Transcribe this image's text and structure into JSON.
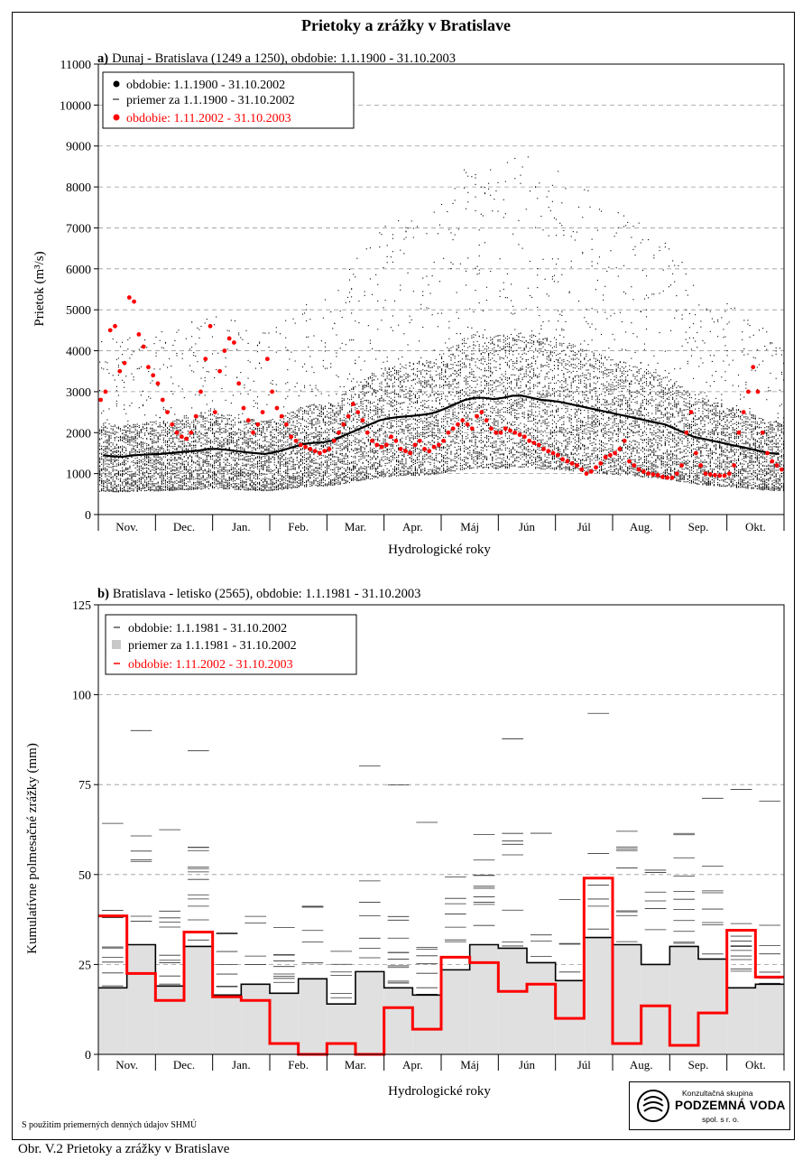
{
  "title": "Prietoky a zrážky v Bratislave",
  "caption": "Obr. V.2 Prietoky a zrážky v Bratislave",
  "source_note": "S použitím priemerných denných údajov SHMÚ",
  "logo": {
    "line1": "Konzultačná skupina",
    "line2": "PODZEMNÁ VODA",
    "line3": "spol. s r. o."
  },
  "colors": {
    "historical": "#000000",
    "current": "#ff0000",
    "mean_fill": "#e0e0e0",
    "grid": "#999999"
  },
  "chart_data": [
    {
      "type": "scatter",
      "panel_letter": "a)",
      "title": "Dunaj - Bratislava (1249 a 1250), obdobie: 1.1.1900 - 31.10.2003",
      "xlabel": "Hydrologické roky",
      "ylabel": "Prietok  (m³/s)",
      "months": [
        "Nov.",
        "Dec.",
        "Jan.",
        "Feb.",
        "Mar.",
        "Apr.",
        "Máj",
        "Jún",
        "Júl",
        "Aug.",
        "Sep.",
        "Okt."
      ],
      "ylim": [
        0,
        11000
      ],
      "yticks": [
        0,
        1000,
        2000,
        3000,
        4000,
        5000,
        6000,
        7000,
        8000,
        9000,
        10000,
        11000
      ],
      "grid": true,
      "legend_position": "top-left",
      "legend": [
        {
          "label": "obdobie: 1.1.1900 - 31.10.2002",
          "marker": "dot",
          "color": "#000000"
        },
        {
          "label": "priemer za 1.1.1900 - 31.10.2002",
          "marker": "line",
          "color": "#000000"
        },
        {
          "label": "obdobie: 1.11.2002 - 31.10.2003",
          "marker": "dot",
          "color": "#ff0000"
        }
      ],
      "mean_monthly_daily": [
        {
          "month": "Nov.",
          "values": [
            1450,
            1420,
            1410,
            1440,
            1460,
            1470
          ]
        },
        {
          "month": "Dec.",
          "values": [
            1480,
            1500,
            1520,
            1540,
            1560,
            1600
          ]
        },
        {
          "month": "Jan.",
          "values": [
            1600,
            1580,
            1550,
            1520,
            1500,
            1480
          ]
        },
        {
          "month": "Feb.",
          "values": [
            1520,
            1580,
            1650,
            1720,
            1750,
            1760
          ]
        },
        {
          "month": "Mar.",
          "values": [
            1800,
            1900,
            2000,
            2100,
            2200,
            2300
          ]
        },
        {
          "month": "Apr.",
          "values": [
            2350,
            2380,
            2400,
            2420,
            2450,
            2500
          ]
        },
        {
          "month": "Máj",
          "values": [
            2600,
            2700,
            2800,
            2850,
            2850,
            2820
          ]
        },
        {
          "month": "Jún",
          "values": [
            2850,
            2900,
            2900,
            2850,
            2800,
            2780
          ]
        },
        {
          "month": "Júl",
          "values": [
            2750,
            2700,
            2650,
            2600,
            2550,
            2500
          ]
        },
        {
          "month": "Aug.",
          "values": [
            2450,
            2400,
            2350,
            2300,
            2250,
            2200
          ]
        },
        {
          "month": "Sep.",
          "values": [
            2100,
            2000,
            1900,
            1850,
            1800,
            1750
          ]
        },
        {
          "month": "Okt.",
          "values": [
            1700,
            1650,
            1600,
            1550,
            1500,
            1480
          ]
        }
      ],
      "current_year_daily": [
        {
          "month": "Nov.",
          "values": [
            2800,
            3000,
            4500,
            4600,
            3500,
            3700,
            5300,
            5200,
            4400,
            4100,
            3600,
            3400
          ]
        },
        {
          "month": "Dec.",
          "values": [
            3200,
            2800,
            2500,
            2200,
            2000,
            1900,
            1850,
            2000,
            2400,
            3000,
            3800,
            4600
          ]
        },
        {
          "month": "Jan.",
          "values": [
            2500,
            3500,
            4000,
            4300,
            4200,
            3200,
            2600,
            2300,
            2000,
            2200,
            2500,
            3800
          ]
        },
        {
          "month": "Feb.",
          "values": [
            3000,
            2600,
            2400,
            2200,
            1900,
            1800,
            1700,
            1650,
            1600,
            1550,
            1500,
            1550
          ]
        },
        {
          "month": "Mar.",
          "values": [
            1600,
            1800,
            2000,
            2200,
            2400,
            2700,
            2500,
            2300,
            2000,
            1800,
            1700,
            1650
          ]
        },
        {
          "month": "Apr.",
          "values": [
            1700,
            1900,
            1800,
            1600,
            1550,
            1500,
            1700,
            1800,
            1600,
            1550,
            1650,
            1700
          ]
        },
        {
          "month": "Máj",
          "values": [
            1800,
            2000,
            2100,
            2200,
            2300,
            2200,
            2100,
            2400,
            2500,
            2300,
            2100,
            2000
          ]
        },
        {
          "month": "Jún",
          "values": [
            2000,
            2100,
            2050,
            2000,
            1950,
            1900,
            1800,
            1750,
            1700,
            1600,
            1550,
            1500
          ]
        },
        {
          "month": "Júl",
          "values": [
            1450,
            1350,
            1300,
            1250,
            1200,
            1100,
            1000,
            1050,
            1150,
            1250,
            1400,
            1450
          ]
        },
        {
          "month": "Aug.",
          "values": [
            1500,
            1600,
            1800,
            1300,
            1200,
            1100,
            1050,
            1000,
            980,
            960,
            920,
            900
          ]
        },
        {
          "month": "Sep.",
          "values": [
            900,
            1000,
            1200,
            2000,
            2500,
            1500,
            1200,
            1000,
            980,
            960,
            950,
            950
          ]
        },
        {
          "month": "Okt.",
          "values": [
            1000,
            1200,
            2000,
            2500,
            3000,
            3600,
            3000,
            2000,
            1500,
            1300,
            1200,
            1100
          ]
        }
      ]
    },
    {
      "type": "bar",
      "panel_letter": "b)",
      "title": "Bratislava - letisko (2565), obdobie:  1.1.1981 - 31.10.2003",
      "xlabel": "Hydrologické roky",
      "ylabel": "Kumulatívne polmesačné zrážky (mm)",
      "months": [
        "Nov.",
        "Dec.",
        "Jan.",
        "Feb.",
        "Mar.",
        "Apr.",
        "Máj",
        "Jún",
        "Júl",
        "Aug.",
        "Sep.",
        "Okt."
      ],
      "ylim": [
        0,
        125
      ],
      "yticks": [
        0,
        25,
        50,
        75,
        100,
        125
      ],
      "grid": true,
      "legend_position": "top-left",
      "legend": [
        {
          "label": "obdobie: 1.1.1981 - 31.10.2002",
          "marker": "line",
          "color": "#000000"
        },
        {
          "label": "priemer za 1.1.1981 - 31.10.2002",
          "marker": "square",
          "color": "#c8c8c8"
        },
        {
          "label": "obdobie: 1.11.2002 - 31.10.2003",
          "marker": "line",
          "color": "#ff0000"
        }
      ],
      "half_month_mean": [
        18.5,
        30.5,
        19,
        30,
        16.5,
        19.5,
        17,
        21,
        14,
        23,
        18.5,
        16.5,
        23.5,
        30.5,
        29.5,
        25.5,
        20.5,
        32.5,
        30.5,
        25,
        30,
        26.5,
        18.5,
        19.5
      ],
      "half_month_2003": [
        38.5,
        22.5,
        15,
        34,
        16,
        15,
        3,
        0,
        3,
        0,
        13,
        7,
        27,
        25.5,
        17.5,
        19.5,
        10,
        49,
        3,
        13.5,
        2.5,
        11.5,
        34.5,
        21.5
      ]
    }
  ]
}
